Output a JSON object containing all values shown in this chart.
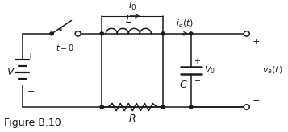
{
  "bg_color": "#ffffff",
  "fig_label": "Figure B.10",
  "fig_label_fontsize": 9,
  "line_color": "#1a1a1a",
  "lw": 1.1
}
